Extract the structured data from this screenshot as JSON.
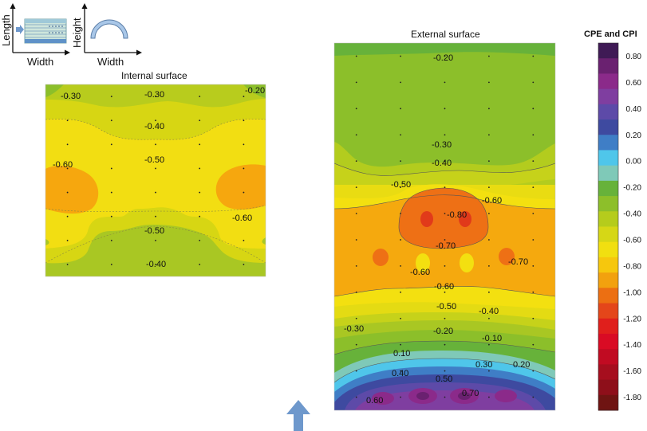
{
  "schematic": {
    "length_label": "Length",
    "width_label_1": "Width",
    "height_label": "Height",
    "width_label_2": "Width"
  },
  "internal": {
    "title": "Internal surface",
    "labels": [
      "-0.30",
      "-0.30",
      "-0.20",
      "-0.40",
      "-0.50",
      "-0.60",
      "-0.60",
      "-0.50",
      "-0.40"
    ]
  },
  "external": {
    "title": "External surface",
    "labels": [
      "-0.20",
      "-0.30",
      "-0.40",
      "-0.50",
      "-0.60",
      "-0.80",
      "-0.70",
      "-0.60",
      "-0.70",
      "-0.60",
      "-0.50",
      "-0.40",
      "-0.30",
      "-0.20",
      "-0.10",
      "0.10",
      "0.30",
      "0.20",
      "0.40",
      "0.50",
      "0.70",
      "0.60"
    ]
  },
  "colorbar": {
    "title": "CPE and CPI",
    "ticks": [
      "0.80",
      "0.60",
      "0.40",
      "0.20",
      "0.00",
      "-0.20",
      "-0.40",
      "-0.60",
      "-0.80",
      "-1.00",
      "-1.20",
      "-1.40",
      "-1.60",
      "-1.80"
    ],
    "colors": [
      "#3f1a55",
      "#6a2170",
      "#8b2a8a",
      "#7f3ea0",
      "#5d4aa8",
      "#3e4aa0",
      "#3f7ec6",
      "#4fc6ea",
      "#7fc9b8",
      "#67b23a",
      "#8dbf2a",
      "#b5cc1c",
      "#d6d716",
      "#f1df10",
      "#f6c70d",
      "#f2a10e",
      "#ec6f12",
      "#e4461a",
      "#e01f1c",
      "#d90b24",
      "#c10b22",
      "#a60e1e",
      "#8e0f1a",
      "#6f1412"
    ]
  },
  "wind_arrow": "wind-direction"
}
